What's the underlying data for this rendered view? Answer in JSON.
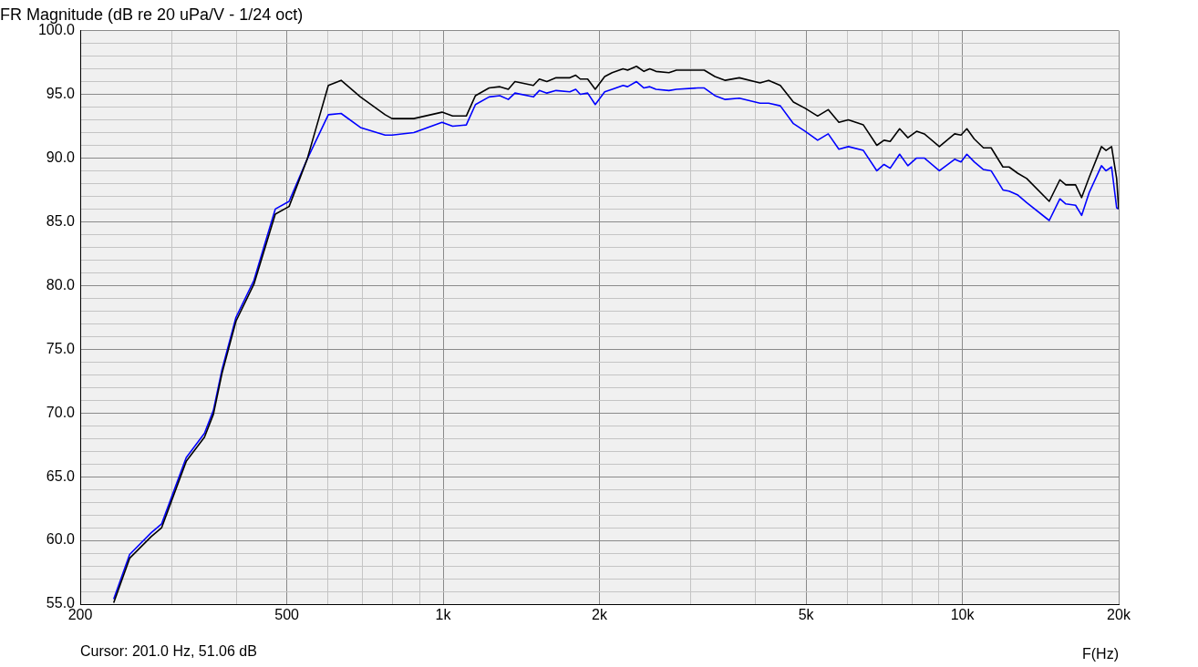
{
  "chart_data": {
    "type": "line",
    "title": "FR Magnitude (dB re 20 uPa/V - 1/24 oct)",
    "xlabel": "F(Hz)",
    "annotations": [
      "Cursor: 201.0 Hz, 51.06 dB"
    ],
    "log": "x",
    "grid": true,
    "legend": false,
    "marker": "none",
    "line_style": "solid",
    "xlim": [
      200,
      20000
    ],
    "ylim": [
      55,
      100
    ],
    "xticks": [
      200,
      {
        "value": 300,
        "label": null
      },
      {
        "value": 400,
        "label": null
      },
      500,
      {
        "value": 600,
        "label": null
      },
      {
        "value": 700,
        "label": null
      },
      {
        "value": 800,
        "label": null
      },
      {
        "value": 900,
        "label": null
      },
      {
        "value": 1000,
        "label": "1k"
      },
      {
        "value": 2000,
        "label": "2k"
      },
      {
        "value": 3000,
        "label": null
      },
      {
        "value": 4000,
        "label": null
      },
      {
        "value": 5000,
        "label": "5k"
      },
      {
        "value": 6000,
        "label": null
      },
      {
        "value": 7000,
        "label": null
      },
      {
        "value": 8000,
        "label": null
      },
      {
        "value": 9000,
        "label": null
      },
      {
        "value": 10000,
        "label": "10k"
      },
      {
        "value": 20000,
        "label": "20k"
      }
    ],
    "yticks": [
      {
        "value": 55,
        "label": "55.0"
      },
      {
        "value": 56,
        "label": null
      },
      {
        "value": 57,
        "label": null
      },
      {
        "value": 58,
        "label": null
      },
      {
        "value": 59,
        "label": null
      },
      {
        "value": 60,
        "label": "60.0"
      },
      {
        "value": 61,
        "label": null
      },
      {
        "value": 62,
        "label": null
      },
      {
        "value": 63,
        "label": null
      },
      {
        "value": 64,
        "label": null
      },
      {
        "value": 65,
        "label": "65.0"
      },
      {
        "value": 66,
        "label": null
      },
      {
        "value": 67,
        "label": null
      },
      {
        "value": 68,
        "label": null
      },
      {
        "value": 69,
        "label": null
      },
      {
        "value": 70,
        "label": "70.0"
      },
      {
        "value": 71,
        "label": null
      },
      {
        "value": 72,
        "label": null
      },
      {
        "value": 73,
        "label": null
      },
      {
        "value": 74,
        "label": null
      },
      {
        "value": 75,
        "label": "75.0"
      },
      {
        "value": 76,
        "label": null
      },
      {
        "value": 77,
        "label": null
      },
      {
        "value": 78,
        "label": null
      },
      {
        "value": 79,
        "label": null
      },
      {
        "value": 80,
        "label": "80.0"
      },
      {
        "value": 81,
        "label": null
      },
      {
        "value": 82,
        "label": null
      },
      {
        "value": 83,
        "label": null
      },
      {
        "value": 84,
        "label": null
      },
      {
        "value": 85,
        "label": "85.0"
      },
      {
        "value": 86,
        "label": null
      },
      {
        "value": 87,
        "label": null
      },
      {
        "value": 88,
        "label": null
      },
      {
        "value": 89,
        "label": null
      },
      {
        "value": 90,
        "label": "90.0"
      },
      {
        "value": 91,
        "label": null
      },
      {
        "value": 92,
        "label": null
      },
      {
        "value": 93,
        "label": null
      },
      {
        "value": 94,
        "label": null
      },
      {
        "value": 95,
        "label": "95.0"
      },
      {
        "value": 96,
        "label": null
      },
      {
        "value": 97,
        "label": null
      },
      {
        "value": 98,
        "label": null
      },
      {
        "value": 99,
        "label": null
      },
      {
        "value": 100,
        "label": "100.0"
      }
    ],
    "x": [
      232,
      249,
      274,
      287,
      320,
      347,
      361,
      375,
      399,
      432,
      475,
      505,
      547,
      601,
      636,
      693,
      773,
      797,
      878,
      995,
      1043,
      1108,
      1154,
      1226,
      1286,
      1335,
      1375,
      1492,
      1532,
      1584,
      1650,
      1754,
      1800,
      1837,
      1898,
      1963,
      2047,
      2116,
      2221,
      2266,
      2357,
      2436,
      2500,
      2570,
      2722,
      2814,
      3099,
      3183,
      3337,
      3494,
      3719,
      4076,
      4235,
      4460,
      4727,
      4981,
      5263,
      5516,
      5783,
      6031,
      6446,
      6843,
      7065,
      7260,
      7572,
      7853,
      8163,
      8447,
      9029,
      9663,
      9938,
      10200,
      10540,
      10980,
      11360,
      11970,
      12300,
      12790,
      13300,
      14700,
      15410,
      15820,
      16520,
      16970,
      17550,
      18530,
      18910,
      19380,
      19820,
      20000
    ],
    "series": [
      {
        "color": "#000000",
        "values": [
          55.1,
          58.6,
          60.3,
          61.0,
          66.2,
          68.1,
          69.9,
          73.1,
          77.2,
          80.1,
          85.6,
          86.2,
          89.9,
          95.7,
          96.1,
          94.8,
          93.4,
          93.1,
          93.1,
          93.6,
          93.3,
          93.3,
          94.9,
          95.5,
          95.6,
          95.4,
          96.0,
          95.7,
          96.2,
          96.0,
          96.3,
          96.3,
          96.5,
          96.2,
          96.2,
          95.4,
          96.4,
          96.7,
          97.0,
          96.9,
          97.2,
          96.8,
          97.0,
          96.8,
          96.7,
          96.9,
          96.9,
          96.9,
          96.4,
          96.1,
          96.3,
          95.9,
          96.1,
          95.7,
          94.4,
          93.9,
          93.3,
          93.8,
          92.8,
          93.0,
          92.6,
          91.0,
          91.4,
          91.3,
          92.3,
          91.6,
          92.1,
          91.9,
          90.9,
          91.9,
          91.8,
          92.3,
          91.5,
          90.8,
          90.8,
          89.3,
          89.3,
          88.8,
          88.4,
          86.6,
          88.3,
          87.9,
          87.9,
          86.9,
          88.5,
          90.9,
          90.6,
          90.9,
          88.4,
          86.0
        ]
      },
      {
        "color": "#0000ff",
        "values": [
          55.4,
          58.9,
          60.6,
          61.3,
          66.5,
          68.4,
          70.2,
          73.4,
          77.5,
          80.4,
          86.0,
          86.6,
          89.9,
          93.4,
          93.5,
          92.4,
          91.8,
          91.8,
          92.0,
          92.8,
          92.5,
          92.6,
          94.2,
          94.8,
          94.9,
          94.6,
          95.1,
          94.8,
          95.3,
          95.1,
          95.3,
          95.2,
          95.4,
          95.0,
          95.1,
          94.2,
          95.2,
          95.4,
          95.7,
          95.6,
          96.0,
          95.5,
          95.6,
          95.4,
          95.3,
          95.4,
          95.5,
          95.5,
          94.9,
          94.6,
          94.7,
          94.3,
          94.3,
          94.1,
          92.7,
          92.1,
          91.4,
          91.9,
          90.7,
          90.9,
          90.6,
          89.0,
          89.5,
          89.2,
          90.3,
          89.4,
          90.0,
          90.0,
          89.0,
          89.9,
          89.7,
          90.3,
          89.7,
          89.1,
          89.0,
          87.5,
          87.4,
          87.1,
          86.5,
          85.1,
          86.8,
          86.4,
          86.3,
          85.5,
          87.3,
          89.4,
          89.0,
          89.3,
          86.1,
          86.0
        ]
      }
    ]
  }
}
